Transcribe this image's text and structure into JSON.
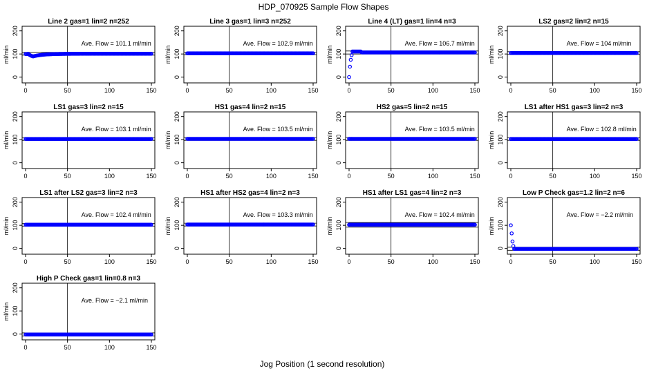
{
  "figure": {
    "title": "HDP_070925  Sample Flow Shapes",
    "xlabel": "Jog Position (1 second resolution)"
  },
  "chart_data": [
    {
      "type": "scatter",
      "title": "Line 2 gas=1 lin=2 n=252",
      "annotation": "Ave. Flow =  101.1  ml/min",
      "ylabel": "ml/min",
      "xlim": [
        0,
        150
      ],
      "ylim": [
        -25,
        220
      ],
      "xticks": [
        "0",
        "50",
        "100",
        "150"
      ],
      "yticks": [
        "0",
        "100",
        "200"
      ],
      "vline": 50,
      "hlines": [
        95,
        107
      ],
      "shape": "dip",
      "level": 101.1,
      "start": 100,
      "min": 82,
      "color": "#0000ff"
    },
    {
      "type": "scatter",
      "title": "Line 3 gas=1 lin=3 n=252",
      "annotation": "Ave. Flow =  102.9  ml/min",
      "ylabel": "ml/min",
      "xlim": [
        0,
        150
      ],
      "ylim": [
        -25,
        220
      ],
      "xticks": [
        "0",
        "50",
        "100",
        "150"
      ],
      "yticks": [
        "0",
        "100",
        "200"
      ],
      "vline": 50,
      "hlines": [
        97,
        108
      ],
      "shape": "flat",
      "level": 102.9,
      "color": "#0000ff"
    },
    {
      "type": "scatter",
      "title": "Line 4 (LT) gas=1 lin=4 n=3",
      "annotation": "Ave. Flow =  106.7  ml/min",
      "ylabel": "ml/min",
      "xlim": [
        0,
        150
      ],
      "ylim": [
        -25,
        220
      ],
      "xticks": [
        "0",
        "50",
        "100",
        "150"
      ],
      "yticks": [
        "0",
        "100",
        "200"
      ],
      "vline": 50,
      "hlines": [
        100,
        113
      ],
      "shape": "rise",
      "level": 106.7,
      "start": 0,
      "color": "#0000ff"
    },
    {
      "type": "scatter",
      "title": "LS2 gas=2 lin=2 n=15",
      "annotation": "Ave. Flow =  104  ml/min",
      "ylabel": "ml/min",
      "xlim": [
        0,
        150
      ],
      "ylim": [
        -25,
        220
      ],
      "xticks": [
        "0",
        "50",
        "100",
        "150"
      ],
      "yticks": [
        "0",
        "100",
        "200"
      ],
      "vline": 50,
      "hlines": [
        98,
        110
      ],
      "shape": "flat",
      "level": 104,
      "color": "#0000ff"
    },
    {
      "type": "scatter",
      "title": "LS1 gas=3 lin=2 n=15",
      "annotation": "Ave. Flow =  103.1  ml/min",
      "ylabel": "ml/min",
      "xlim": [
        0,
        150
      ],
      "ylim": [
        -25,
        220
      ],
      "xticks": [
        "0",
        "50",
        "100",
        "150"
      ],
      "yticks": [
        "0",
        "100",
        "200"
      ],
      "vline": 50,
      "hlines": [
        97,
        109
      ],
      "shape": "flat",
      "level": 103.1,
      "color": "#0000ff"
    },
    {
      "type": "scatter",
      "title": "HS1 gas=4 lin=2 n=15",
      "annotation": "Ave. Flow =  103.5  ml/min",
      "ylabel": "ml/min",
      "xlim": [
        0,
        150
      ],
      "ylim": [
        -25,
        220
      ],
      "xticks": [
        "0",
        "50",
        "100",
        "150"
      ],
      "yticks": [
        "0",
        "100",
        "200"
      ],
      "vline": 50,
      "hlines": [
        97,
        109
      ],
      "shape": "flat",
      "level": 103.5,
      "color": "#0000ff"
    },
    {
      "type": "scatter",
      "title": "HS2 gas=5 lin=2 n=15",
      "annotation": "Ave. Flow =  103.5  ml/min",
      "ylabel": "ml/min",
      "xlim": [
        0,
        150
      ],
      "ylim": [
        -25,
        220
      ],
      "xticks": [
        "0",
        "50",
        "100",
        "150"
      ],
      "yticks": [
        "0",
        "100",
        "200"
      ],
      "vline": 50,
      "hlines": [
        97,
        109
      ],
      "shape": "flat",
      "level": 103.5,
      "color": "#0000ff"
    },
    {
      "type": "scatter",
      "title": "LS1 after HS1 gas=3 lin=2 n=3",
      "annotation": "Ave. Flow =  102.8  ml/min",
      "ylabel": "ml/min",
      "xlim": [
        0,
        150
      ],
      "ylim": [
        -25,
        220
      ],
      "xticks": [
        "0",
        "50",
        "100",
        "150"
      ],
      "yticks": [
        "0",
        "100",
        "200"
      ],
      "vline": 50,
      "hlines": [
        97,
        108
      ],
      "shape": "flat",
      "level": 102.8,
      "color": "#0000ff"
    },
    {
      "type": "scatter",
      "title": "LS1 after LS2 gas=3 lin=2 n=3",
      "annotation": "Ave. Flow =  102.4  ml/min",
      "ylabel": "ml/min",
      "xlim": [
        0,
        150
      ],
      "ylim": [
        -25,
        220
      ],
      "xticks": [
        "0",
        "50",
        "100",
        "150"
      ],
      "yticks": [
        "0",
        "100",
        "200"
      ],
      "vline": 50,
      "hlines": [
        96,
        108
      ],
      "shape": "flat",
      "level": 102.4,
      "color": "#0000ff"
    },
    {
      "type": "scatter",
      "title": "HS1 after HS2 gas=4 lin=2 n=3",
      "annotation": "Ave. Flow =  103.3  ml/min",
      "ylabel": "ml/min",
      "xlim": [
        0,
        150
      ],
      "ylim": [
        -25,
        220
      ],
      "xticks": [
        "0",
        "50",
        "100",
        "150"
      ],
      "yticks": [
        "0",
        "100",
        "200"
      ],
      "vline": 50,
      "hlines": [
        97,
        109
      ],
      "shape": "flat",
      "level": 103.3,
      "color": "#0000ff"
    },
    {
      "type": "scatter",
      "title": "HS1 after LS1 gas=4 lin=2 n=3",
      "annotation": "Ave. Flow =  102.4  ml/min",
      "ylabel": "ml/min",
      "xlim": [
        0,
        150
      ],
      "ylim": [
        -25,
        220
      ],
      "xticks": [
        "0",
        "50",
        "100",
        "150"
      ],
      "yticks": [
        "0",
        "100",
        "200"
      ],
      "vline": 50,
      "hlines": [
        92,
        112
      ],
      "shape": "flat",
      "level": 102.4,
      "color": "#0000ff"
    },
    {
      "type": "scatter",
      "title": "Low P Check gas=1.2 lin=2 n=6",
      "annotation": "Ave. Flow =  −2.2  ml/min",
      "ylabel": "ml/min",
      "xlim": [
        0,
        150
      ],
      "ylim": [
        -25,
        220
      ],
      "xticks": [
        "0",
        "50",
        "100",
        "150"
      ],
      "yticks": [
        "0",
        "100",
        "200"
      ],
      "vline": 50,
      "hlines": [
        -8,
        5
      ],
      "shape": "fall",
      "level": -2.2,
      "start": 100,
      "color": "#0000ff"
    },
    {
      "type": "scatter",
      "title": "High P Check gas=1 lin=0.8 n=3",
      "annotation": "Ave. Flow =  −2.1  ml/min",
      "ylabel": "ml/min",
      "xlim": [
        0,
        150
      ],
      "ylim": [
        -25,
        220
      ],
      "xticks": [
        "0",
        "50",
        "100",
        "150"
      ],
      "yticks": [
        "0",
        "100",
        "200"
      ],
      "vline": 50,
      "hlines": [
        -8,
        5
      ],
      "shape": "flat",
      "level": -2.1,
      "color": "#0000ff"
    }
  ]
}
